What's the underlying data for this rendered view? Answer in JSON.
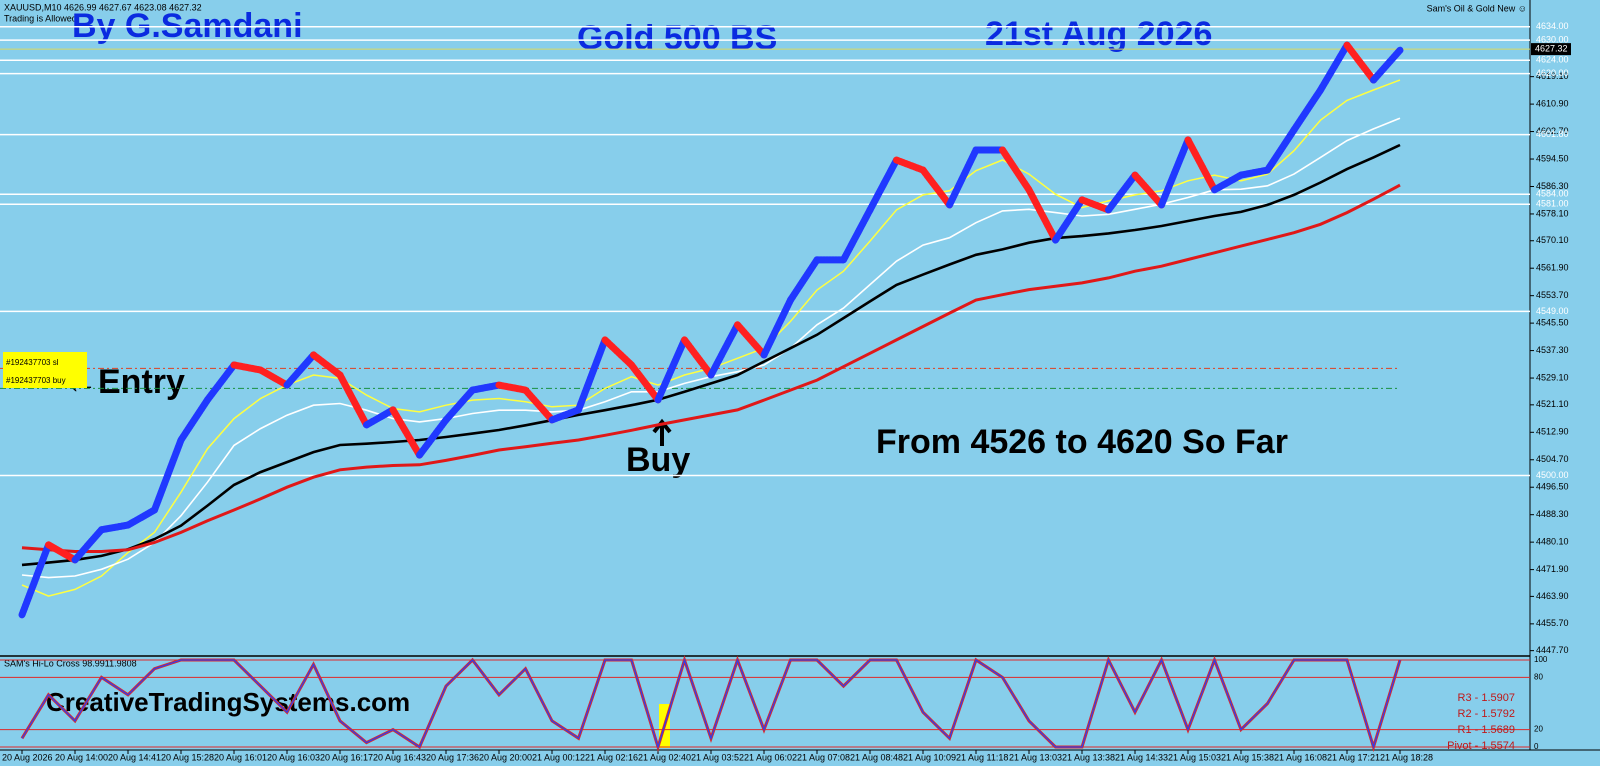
{
  "header": {
    "symbol_line": "XAUUSD,M10  4626.99 4627.67 4623.08 4627.32",
    "status": "Trading is Allowed",
    "indicator_name": "Sam's Oil & Gold New ☺"
  },
  "chart_data": [
    {
      "type": "line",
      "annotations": {
        "author": "By G.Samdani",
        "title": "Gold 500 BS",
        "date": "21st Aug 2026",
        "entry": "←Entry",
        "buy": "Buy",
        "result": "From 4526 to 4620 So Far",
        "website": "CreativeTradingSystems.com"
      },
      "categories": [
        "20 Aug 2026",
        null,
        "20 Aug 14:00",
        null,
        "20 Aug 14:41",
        null,
        "20 Aug 15:28",
        null,
        "20 Aug 16:01",
        null,
        "20 Aug 16:03",
        null,
        "20 Aug 16:17",
        null,
        "20 Aug 16:43",
        null,
        "20 Aug 17:36",
        null,
        "20 Aug 20:00",
        null,
        "21 Aug 00:12",
        null,
        "21 Aug 02:16",
        null,
        "21 Aug 02:40",
        null,
        "21 Aug 03:52",
        null,
        "21 Aug 06:02",
        null,
        "21 Aug 07:08",
        null,
        "21 Aug 08:48",
        null,
        "21 Aug 10:09",
        null,
        "21 Aug 11:18",
        null,
        "21 Aug 13:03",
        null,
        "21 Aug 13:38",
        null,
        "21 Aug 14:33",
        null,
        "21 Aug 15:03",
        null,
        "21 Aug 15:38",
        null,
        "21 Aug 16:08",
        null,
        "21 Aug 17:21",
        null,
        "21 Aug 18:28"
      ],
      "series": [
        {
          "color": "#2038ff",
          "down_color": "#ff2020",
          "values": [
            4458.4,
            4479.3,
            4474.8,
            4483.8,
            4485.2,
            4489.7,
            4510.6,
            4522.6,
            4533.0,
            4531.5,
            4527.0,
            4536.0,
            4530.0,
            4515.1,
            4519.6,
            4506.1,
            4516.6,
            4525.5,
            4527.0,
            4525.5,
            4516.6,
            4519.6,
            4540.5,
            4533.0,
            4522.6,
            4540.5,
            4530.0,
            4545.0,
            4536.0,
            4552.4,
            4564.4,
            4564.4,
            4579.3,
            4594.2,
            4591.2,
            4580.8,
            4597.2,
            4597.2,
            4585.3,
            4570.3,
            4582.3,
            4579.3,
            4589.7,
            4580.8,
            4600.2,
            4585.3,
            4589.7,
            4591.2,
            4603.2,
            4615.1,
            4628.5,
            4618.1,
            4627.0
          ]
        },
        {
          "color": "#ffff40",
          "values": [
            4467.3,
            4464,
            4466,
            4470,
            4477,
            4483,
            4495,
            4508,
            4517,
            4523,
            4527,
            4530,
            4529,
            4524,
            4520,
            4519,
            4521,
            4522.5,
            4523,
            4522,
            4520.5,
            4521,
            4526,
            4529.5,
            4527,
            4530,
            4532,
            4535,
            4538,
            4546,
            4555.4,
            4561,
            4570,
            4579.3,
            4583.8,
            4585,
            4591,
            4594.2,
            4590,
            4584,
            4580,
            4582,
            4583.8,
            4585,
            4588,
            4589.7,
            4588,
            4590,
            4597,
            4606.1,
            4612,
            4615.1,
            4618.1
          ]
        },
        {
          "color": "#ffffff",
          "values": [
            4470.3,
            4469.5,
            4470,
            4472,
            4475,
            4480,
            4488,
            4498,
            4509,
            4514,
            4518,
            4521,
            4521.5,
            4519.5,
            4517,
            4516,
            4517,
            4518.5,
            4519.5,
            4519.5,
            4519,
            4519.5,
            4522,
            4525,
            4525,
            4527.5,
            4529.5,
            4531,
            4533,
            4538,
            4545,
            4550,
            4557,
            4564,
            4568.8,
            4571,
            4575.5,
            4579,
            4579.5,
            4578.5,
            4577.5,
            4578,
            4579.5,
            4581,
            4583,
            4585.3,
            4585.5,
            4586.5,
            4590,
            4595,
            4600,
            4603.5,
            4606.7
          ]
        },
        {
          "color": "#000000",
          "values": [
            4473.3,
            4474,
            4474.8,
            4476,
            4478,
            4481,
            4485,
            4491,
            4497.2,
            4501,
            4504,
            4507,
            4509.1,
            4509.5,
            4510,
            4510.6,
            4511.5,
            4512.5,
            4513.6,
            4515,
            4516.5,
            4518.1,
            4519.5,
            4521,
            4522.6,
            4525,
            4527.5,
            4530,
            4534,
            4538,
            4542,
            4547,
            4552,
            4556.9,
            4560,
            4563,
            4565.9,
            4567.5,
            4569.5,
            4570.9,
            4571.5,
            4572.3,
            4573.3,
            4574.5,
            4576,
            4577.5,
            4578.7,
            4580.8,
            4583.8,
            4587.5,
            4591.5,
            4595,
            4598.7
          ]
        },
        {
          "color": "#e01818",
          "values": [
            4478.4,
            4477.8,
            4477.3,
            4477.3,
            4477.8,
            4480,
            4483,
            4486.5,
            4489.7,
            4493,
            4496.5,
            4499.5,
            4501.7,
            4502.5,
            4503,
            4503.2,
            4504.5,
            4506,
            4507.6,
            4508.6,
            4509.6,
            4510.6,
            4512,
            4513.5,
            4515.1,
            4516.6,
            4518.1,
            4519.6,
            4522.5,
            4525.5,
            4528.5,
            4532.5,
            4536.5,
            4540.5,
            4544.5,
            4548.5,
            4552.4,
            4554,
            4555.5,
            4556.5,
            4557.5,
            4559,
            4561,
            4562.5,
            4564.5,
            4566.5,
            4568.5,
            4570.5,
            4572.5,
            4575,
            4578.5,
            4582.5,
            4586.7
          ]
        }
      ],
      "ylim": [
        4446.4,
        4639.0
      ],
      "yticks": [
        {
          "value": 4447.7,
          "label": "4447.70"
        },
        {
          "value": 4455.7,
          "label": "4455.70"
        },
        {
          "value": 4463.9,
          "label": "4463.90"
        },
        {
          "value": 4471.9,
          "label": "4471.90"
        },
        {
          "value": 4480.1,
          "label": "4480.10"
        },
        {
          "value": 4488.3,
          "label": "4488.30"
        },
        {
          "value": 4496.5,
          "label": "4496.50"
        },
        {
          "value": 4504.7,
          "label": "4504.70"
        },
        {
          "value": 4512.9,
          "label": "4512.90"
        },
        {
          "value": 4521.1,
          "label": "4521.10"
        },
        {
          "value": 4529.1,
          "label": "4529.10"
        },
        {
          "value": 4537.3,
          "label": "4537.30"
        },
        {
          "value": 4545.5,
          "label": "4545.50"
        },
        {
          "value": 4553.7,
          "label": "4553.70"
        },
        {
          "value": 4561.9,
          "label": "4561.90"
        },
        {
          "value": 4570.1,
          "label": "4570.10"
        },
        {
          "value": 4578.1,
          "label": "4578.10"
        },
        {
          "value": 4586.3,
          "label": "4586.30"
        },
        {
          "value": 4594.5,
          "label": "4594.50"
        },
        {
          "value": 4602.7,
          "label": "4602.70"
        },
        {
          "value": 4610.9,
          "label": "4610.90"
        },
        {
          "value": 4619.1,
          "label": "4619.10"
        }
      ],
      "levels": [
        {
          "value": 4634,
          "label": "4634.00"
        },
        {
          "value": 4630,
          "label": "4630.00"
        },
        {
          "value": 4624,
          "label": "4624.00"
        },
        {
          "value": 4620,
          "label": "4620.00"
        },
        {
          "value": 4601.8,
          "label": "4601.80"
        },
        {
          "value": 4584,
          "label": "4584.00"
        },
        {
          "value": 4581,
          "label": "4581.00"
        },
        {
          "value": 4549,
          "label": "4549.00"
        },
        {
          "value": 4500,
          "label": "4500.00"
        }
      ],
      "current": {
        "value": 4627.32,
        "label": "4627.32"
      },
      "orders": [
        {
          "label": "#192437703 sl",
          "value": 4532.0,
          "color": "#e04020"
        },
        {
          "label": "#192437703 buy",
          "value": 4526.0,
          "color": "#189040"
        }
      ]
    },
    {
      "type": "line",
      "title": "SAM's Hi-Lo Cross 98.9911.9808",
      "series": [
        {
          "color": "#3040e8",
          "shadow": "#e02828",
          "values": [
            10,
            60,
            30,
            80,
            60,
            90,
            100,
            100,
            100,
            70,
            40,
            95,
            30,
            5,
            20,
            0,
            70,
            100,
            60,
            90,
            30,
            10,
            100,
            100,
            0,
            100,
            10,
            100,
            20,
            100,
            100,
            70,
            100,
            100,
            40,
            10,
            100,
            80,
            30,
            0,
            0,
            100,
            40,
            100,
            20,
            100,
            20,
            50,
            100,
            100,
            100,
            0,
            100
          ]
        }
      ],
      "ylim": [
        0,
        100
      ],
      "yticks": [
        0,
        20,
        80,
        100
      ],
      "grid_color": "#e02828",
      "pivots": [
        "R3 - 1.5907",
        "R2 - 1.5792",
        "R1 - 1.5689",
        "Pivot - 1.5574"
      ]
    }
  ]
}
